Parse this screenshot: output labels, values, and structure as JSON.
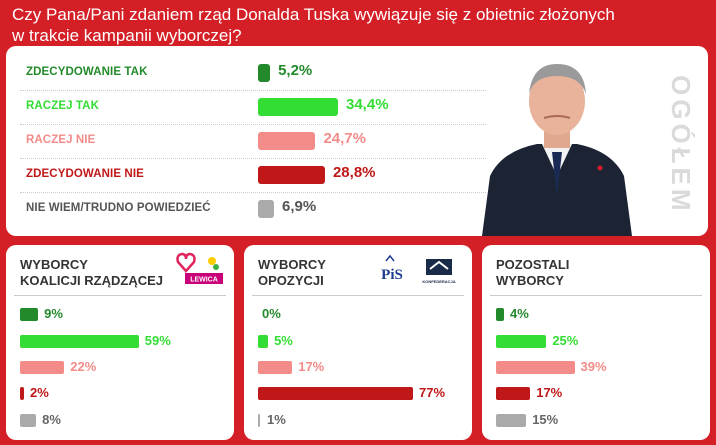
{
  "title": "Czy Pana/Pani zdaniem rząd Donalda Tuska wywiązuje się z obietnic złożonych\nw trakcie kampanii wyborczej?",
  "watermark": "OGÓŁEM",
  "colors": {
    "strong_yes": "#238a2c",
    "yes": "#33dd33",
    "no": "#f38b88",
    "strong_no": "#c01818",
    "dont_know": "#aaaaaa",
    "background": "#d51f26"
  },
  "panels": [
    {
      "title": "WYBORCY\nKOALICJI RZĄDZĄCEJ",
      "logos": [
        "heart-logo",
        "clover-logo",
        "LEWICA"
      ]
    },
    {
      "title": "WYBORCY\nOPOZYCJI",
      "logos": [
        "PiS",
        "KONFEDERACJA"
      ]
    },
    {
      "title": "POZOSTALI\nWYBORCY",
      "logos": []
    }
  ],
  "chart_data": [
    {
      "type": "bar",
      "orientation": "horizontal",
      "title": "",
      "categories": [
        "ZDECYDOWANIE TAK",
        "RACZEJ TAK",
        "RACZEJ NIE",
        "ZDECYDOWANIE NIE",
        "NIE WIEM/TRUDNO POWIEDZIEĆ"
      ],
      "values": [
        5.2,
        34.4,
        24.7,
        28.8,
        6.9
      ],
      "labels": [
        "5,2%",
        "34,4%",
        "24,7%",
        "28,8%",
        "6,9%"
      ],
      "xlim": [
        0,
        100
      ]
    },
    {
      "type": "bar",
      "orientation": "horizontal",
      "title": "WYBORCY KOALICJI RZĄDZĄCEJ",
      "categories": [
        "ZDECYDOWANIE TAK",
        "RACZEJ TAK",
        "RACZEJ NIE",
        "ZDECYDOWANIE NIE",
        "NIE WIEM/TRUDNO POWIEDZIEĆ"
      ],
      "values": [
        9,
        59,
        22,
        2,
        8
      ],
      "labels": [
        "9%",
        "59%",
        "22%",
        "2%",
        "8%"
      ],
      "xlim": [
        0,
        100
      ]
    },
    {
      "type": "bar",
      "orientation": "horizontal",
      "title": "WYBORCY OPOZYCJI",
      "categories": [
        "ZDECYDOWANIE TAK",
        "RACZEJ TAK",
        "RACZEJ NIE",
        "ZDECYDOWANIE NIE",
        "NIE WIEM/TRUDNO POWIEDZIEĆ"
      ],
      "values": [
        0,
        5,
        17,
        77,
        1
      ],
      "labels": [
        "0%",
        "5%",
        "17%",
        "77%",
        "1%"
      ],
      "xlim": [
        0,
        100
      ]
    },
    {
      "type": "bar",
      "orientation": "horizontal",
      "title": "POZOSTALI WYBORCY",
      "categories": [
        "ZDECYDOWANIE TAK",
        "RACZEJ TAK",
        "RACZEJ NIE",
        "ZDECYDOWANIE NIE",
        "NIE WIEM/TRUDNO POWIEDZIEĆ"
      ],
      "values": [
        4,
        25,
        39,
        17,
        15
      ],
      "labels": [
        "4%",
        "25%",
        "39%",
        "17%",
        "15%"
      ],
      "xlim": [
        0,
        100
      ]
    }
  ]
}
